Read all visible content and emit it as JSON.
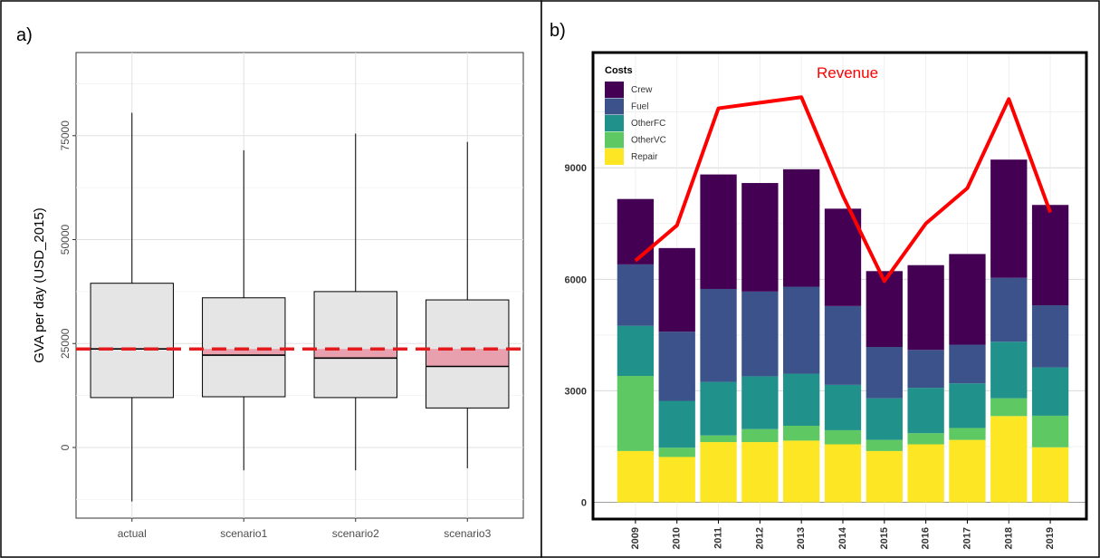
{
  "panels": {
    "a": {
      "label": "a)"
    },
    "b": {
      "label": "b)"
    }
  },
  "chart_data": [
    {
      "type": "boxplot",
      "panel": "a",
      "ylabel": "GVA per day (USD_2015)",
      "xlabel": "",
      "categories": [
        "actual",
        "scenario1",
        "scenario2",
        "scenario3"
      ],
      "boxes": [
        {
          "category": "actual",
          "whisker_low": -13000,
          "q1": 12000,
          "median": 23700,
          "q3": 39500,
          "whisker_high": 80500
        },
        {
          "category": "scenario1",
          "whisker_low": -5500,
          "q1": 12200,
          "median": 22200,
          "q3": 36000,
          "whisker_high": 71500
        },
        {
          "category": "scenario2",
          "whisker_low": -5500,
          "q1": 12000,
          "median": 21500,
          "q3": 37500,
          "whisker_high": 75500
        },
        {
          "category": "scenario3",
          "whisker_low": -5000,
          "q1": 9500,
          "median": 19500,
          "q3": 35500,
          "whisker_high": 73500
        }
      ],
      "reference_line": {
        "value": 23700,
        "color": "#e41a1c",
        "style": "dashed"
      },
      "yticks": [
        0,
        25000,
        50000,
        75000
      ],
      "ytick_labels": [
        "0",
        "25000",
        "50000",
        "75000"
      ],
      "ylim": [
        -17000,
        95000
      ],
      "grid": true,
      "colors": {
        "box_fill": "#e5e5e5",
        "gap_fill": "#e8a0ae",
        "median": "#000000"
      }
    },
    {
      "type": "stacked_bar",
      "panel": "b",
      "categories": [
        "2009",
        "2010",
        "2011",
        "2012",
        "2013",
        "2014",
        "2015",
        "2016",
        "2017",
        "2018",
        "2019"
      ],
      "series": [
        {
          "name": "Repair",
          "color": "#fde725",
          "values": [
            1380,
            1220,
            1620,
            1620,
            1660,
            1560,
            1380,
            1560,
            1680,
            2320,
            1480
          ]
        },
        {
          "name": "OtherVC",
          "color": "#5ec962",
          "values": [
            2020,
            250,
            180,
            350,
            400,
            380,
            300,
            300,
            320,
            480,
            850
          ]
        },
        {
          "name": "OtherFC",
          "color": "#21918c",
          "values": [
            1350,
            1260,
            1440,
            1420,
            1400,
            1220,
            1120,
            1220,
            1200,
            1520,
            1300
          ]
        },
        {
          "name": "Fuel",
          "color": "#3b528b",
          "values": [
            1650,
            1860,
            2500,
            2280,
            2340,
            2120,
            1380,
            1020,
            1040,
            1720,
            1670
          ]
        },
        {
          "name": "Crew",
          "color": "#440154",
          "values": [
            1760,
            2250,
            3080,
            2920,
            3160,
            2620,
            2040,
            2280,
            2440,
            3180,
            2700
          ]
        }
      ],
      "line": {
        "name": "Revenue",
        "color": "#ff0000",
        "values": [
          6500,
          7450,
          10600,
          10750,
          10900,
          8250,
          5950,
          7500,
          8450,
          10850,
          7800
        ]
      },
      "legend": {
        "title": "Costs",
        "placement": "top-left",
        "order": [
          "Crew",
          "Fuel",
          "OtherFC",
          "OtherVC",
          "Repair"
        ]
      },
      "yticks": [
        0,
        3000,
        6000,
        9000
      ],
      "ytick_labels": [
        "0",
        "3000",
        "6000",
        "9000"
      ],
      "ylim": [
        -450,
        12100
      ],
      "grid": true
    }
  ]
}
